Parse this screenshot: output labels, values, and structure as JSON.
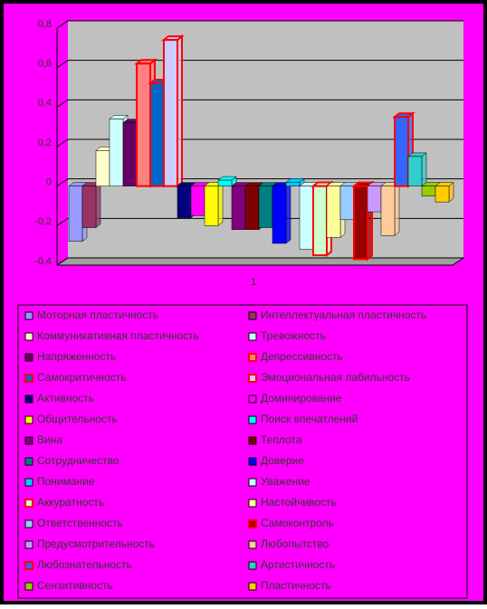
{
  "chart_data": {
    "type": "bar",
    "categories": [
      "1"
    ],
    "ylim": [
      -0.4,
      0.8
    ],
    "yticks": [
      {
        "value": -0.4,
        "label": "-0,4"
      },
      {
        "value": -0.2,
        "label": "-0,2"
      },
      0,
      {
        "value": 0.2,
        "label": "0,2"
      },
      {
        "value": 0.4,
        "label": "0,4"
      },
      {
        "value": 0.6,
        "label": "0,6"
      },
      {
        "value": 0.8,
        "label": "0,8"
      }
    ],
    "grid": true,
    "series": [
      {
        "name": "Моторная пластичность",
        "color": "#9999ff",
        "values": [
          -0.28
        ]
      },
      {
        "name": "Интеллектуальная пластичность",
        "color": "#993366",
        "values": [
          -0.21
        ]
      },
      {
        "name": "Коммуникативная пластичность",
        "color": "#ffffcc",
        "values": [
          0.18
        ]
      },
      {
        "name": "Тревожность",
        "color": "#ccffff",
        "values": [
          0.34
        ]
      },
      {
        "name": "Напряженность",
        "color": "#660066",
        "values": [
          0.32
        ]
      },
      {
        "name": "Депрессивность",
        "color": "#ff8080",
        "edge": "#ff0000",
        "values": [
          0.62
        ]
      },
      {
        "name": "Самокритичность",
        "color": "#0066cc",
        "edge": "#ff0000",
        "values": [
          0.52
        ]
      },
      {
        "name": "Эмоциональная лабильность",
        "color": "#ccccff",
        "edge": "#ff0000",
        "values": [
          0.74
        ]
      },
      {
        "name": "Активность",
        "color": "#000080",
        "values": [
          -0.16
        ]
      },
      {
        "name": "Доминирование",
        "color": "#ff00ff",
        "values": [
          -0.15
        ]
      },
      {
        "name": "Общительность",
        "color": "#ffff00",
        "values": [
          -0.2
        ]
      },
      {
        "name": "Поиск впечатлений",
        "color": "#00ffff",
        "values": [
          0.03
        ]
      },
      {
        "name": "Вина",
        "color": "#800080",
        "values": [
          -0.22
        ]
      },
      {
        "name": "Теплота",
        "color": "#800000",
        "values": [
          -0.22
        ]
      },
      {
        "name": "Сотрудничество",
        "color": "#008080",
        "values": [
          -0.21
        ]
      },
      {
        "name": "Доверие",
        "color": "#0000ff",
        "values": [
          -0.29
        ]
      },
      {
        "name": "Понимание",
        "color": "#00ccff",
        "values": [
          0.02
        ]
      },
      {
        "name": "Уважение",
        "color": "#ccffff",
        "values": [
          -0.32
        ]
      },
      {
        "name": "Аккуратность",
        "color": "#ccffcc",
        "edge": "#ff0000",
        "values": [
          -0.35
        ]
      },
      {
        "name": "Настойчивость",
        "color": "#ffff99",
        "values": [
          -0.26
        ]
      },
      {
        "name": "Ответственность",
        "color": "#99ccff",
        "values": [
          -0.17
        ]
      },
      {
        "name": "Самоконтроль",
        "color": "#990000",
        "edge": "#ff0000",
        "values": [
          -0.37
        ]
      },
      {
        "name": "Предусмотрительность",
        "color": "#cc99ff",
        "values": [
          -0.13
        ]
      },
      {
        "name": "Любопытство",
        "color": "#ffcc99",
        "values": [
          -0.25
        ]
      },
      {
        "name": "Любознательность",
        "color": "#3366ff",
        "edge": "#ff0000",
        "values": [
          0.35
        ]
      },
      {
        "name": "Артистичность",
        "color": "#33cccc",
        "values": [
          0.15
        ]
      },
      {
        "name": "Сензитивность",
        "color": "#99cc00",
        "values": [
          -0.05
        ]
      },
      {
        "name": "Пластичность",
        "color": "#ffcc00",
        "values": [
          -0.08
        ]
      }
    ]
  }
}
